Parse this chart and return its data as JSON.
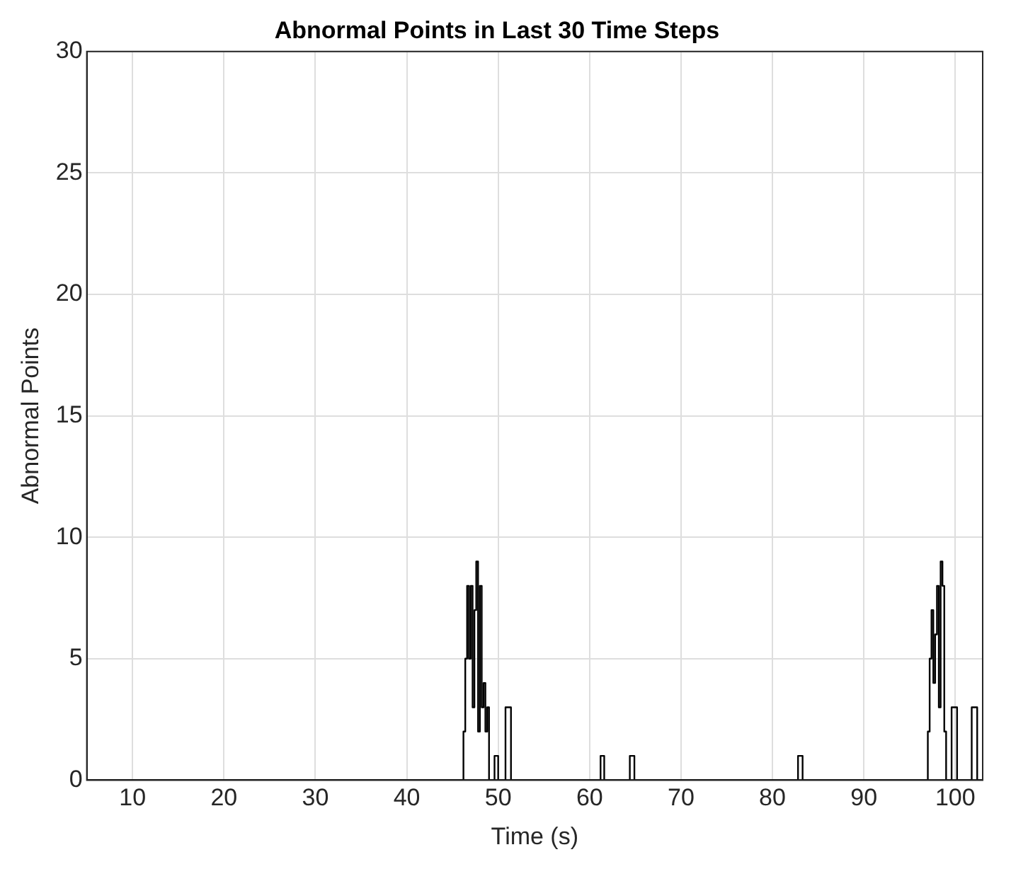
{
  "chart_data": {
    "type": "step",
    "title": "Abnormal Points in Last 30 Time Steps",
    "xlabel": "Time (s)",
    "ylabel": "Abnormal Points",
    "xlim": [
      5,
      103
    ],
    "xticks": [
      10,
      20,
      30,
      40,
      50,
      60,
      70,
      80,
      90,
      100
    ],
    "ylim": [
      0,
      30
    ],
    "yticks": [
      0,
      5,
      10,
      15,
      20,
      25,
      30
    ],
    "grid": true,
    "legend": false,
    "marker": "none",
    "line_style": "solid",
    "series": [
      {
        "color": "#000000",
        "x": [
          5,
          46.0,
          46.2,
          46.4,
          46.6,
          46.8,
          47.0,
          47.2,
          47.4,
          47.6,
          47.8,
          48.0,
          48.2,
          48.4,
          48.6,
          48.8,
          49.0,
          49.6,
          50.0,
          50.8,
          51.4,
          61.2,
          61.6,
          64.4,
          64.9,
          82.8,
          83.3,
          96.8,
          97.0,
          97.2,
          97.4,
          97.6,
          97.8,
          98.0,
          98.2,
          98.4,
          98.6,
          98.8,
          99.0,
          99.6,
          100.2,
          101.8,
          102.4,
          103
        ],
        "values": [
          0,
          0,
          2,
          5,
          8,
          5,
          8,
          3,
          7,
          9,
          2,
          8,
          3,
          4,
          2,
          3,
          0,
          1,
          0,
          3,
          0,
          1,
          0,
          1,
          0,
          1,
          0,
          0,
          2,
          5,
          7,
          4,
          6,
          8,
          3,
          9,
          8,
          2,
          0,
          3,
          0,
          3,
          0,
          0
        ]
      }
    ]
  }
}
